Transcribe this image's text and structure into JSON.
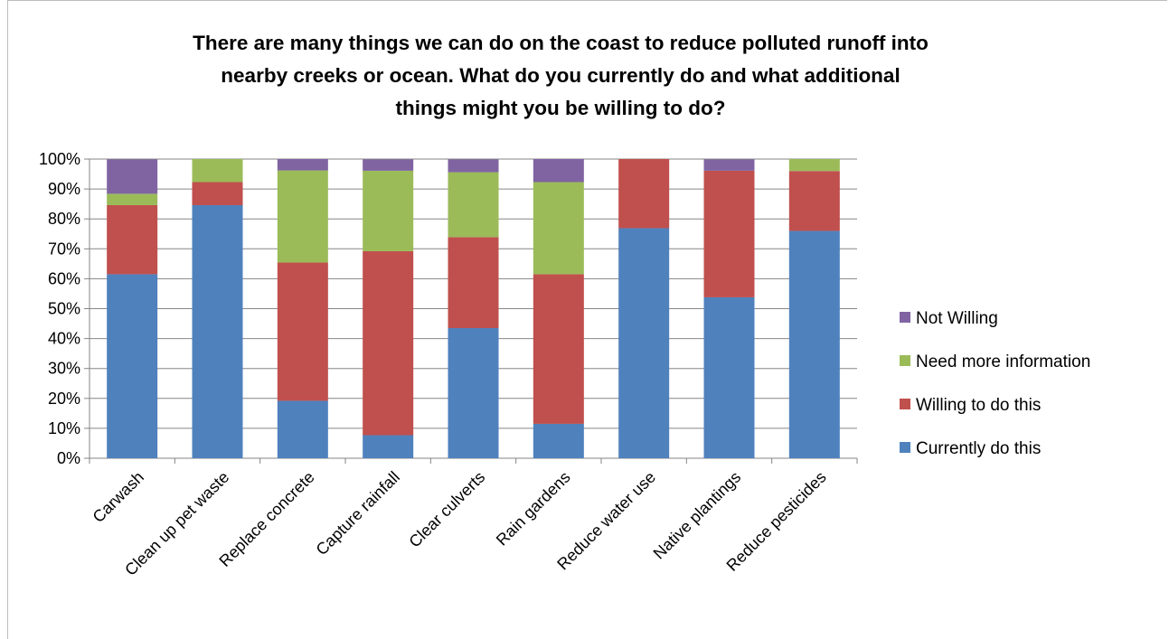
{
  "chart_data": {
    "type": "bar",
    "stacked": true,
    "percent_stacked": true,
    "title": "There are many things we can do on the coast to reduce polluted runoff into nearby creeks or ocean. What do you currently do and what additional things might you be willing to do?",
    "title_lines": [
      "There are many things we can do on the coast to reduce polluted runoff into",
      "nearby creeks or ocean. What do you currently do and what additional",
      "things might you be willing to do?"
    ],
    "categories": [
      "Carwash",
      "Clean up pet waste",
      "Replace concrete",
      "Capture rainfall",
      "Clear culverts",
      "Rain gardens",
      "Reduce water use",
      "Native plantings",
      "Reduce pesticides"
    ],
    "series": [
      {
        "name": "Currently do this",
        "color": "#4F81BD",
        "values": [
          61.5,
          84.6,
          19.2,
          7.7,
          43.5,
          11.5,
          76.9,
          53.8,
          76.0
        ]
      },
      {
        "name": "Willing to do this",
        "color": "#C0504D",
        "values": [
          23.1,
          7.7,
          46.2,
          61.5,
          30.4,
          50.0,
          23.1,
          42.3,
          20.0
        ]
      },
      {
        "name": "Need more information",
        "color": "#9BBB59",
        "values": [
          3.8,
          7.7,
          30.8,
          26.9,
          21.7,
          30.8,
          0,
          0,
          4.0
        ]
      },
      {
        "name": "Not Willing",
        "color": "#8064A2",
        "values": [
          11.5,
          0,
          3.8,
          3.8,
          4.3,
          7.7,
          0,
          3.8,
          0
        ]
      }
    ],
    "y_ticks": [
      "0%",
      "10%",
      "20%",
      "30%",
      "40%",
      "50%",
      "60%",
      "70%",
      "80%",
      "90%",
      "100%"
    ],
    "ylim": [
      0,
      100
    ],
    "legend_order": [
      "Not Willing",
      "Need more information",
      "Willing to do this",
      "Currently do this"
    ],
    "legend_position": "right",
    "grid": true,
    "xlabel": "",
    "ylabel": ""
  }
}
